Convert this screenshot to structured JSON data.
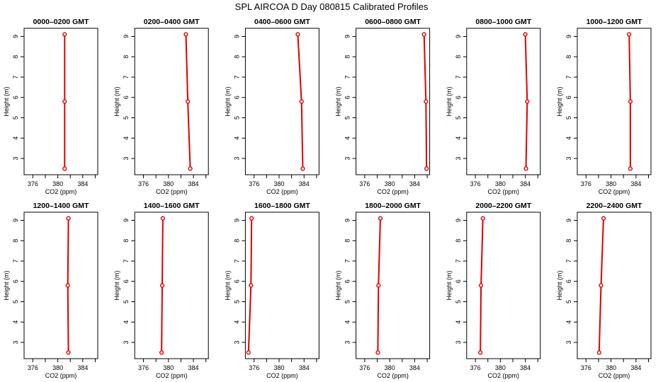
{
  "title": "SPL AIRCOA D  Day 080815  Calibrated Profiles",
  "colors": {
    "profile": "#dd0000",
    "frame": "#000000",
    "background": "#ffffff"
  },
  "chart_data": [
    {
      "type": "line",
      "title": "0000–0200 GMT",
      "xlabel": "CO2 (ppm)",
      "ylabel": "Height (m)",
      "xlim": [
        374.6,
        386.4
      ],
      "ylim": [
        2.2,
        9.4
      ],
      "x_ticks": [
        376,
        380,
        384
      ],
      "y_ticks": [
        3,
        4,
        5,
        6,
        7,
        8,
        9
      ],
      "grid": false,
      "series": [
        {
          "x": [
            381.1,
            381.1,
            381.1
          ],
          "y": [
            9.1,
            5.8,
            2.5
          ]
        }
      ]
    },
    {
      "type": "line",
      "title": "0200–0400 GMT",
      "xlabel": "CO2 (ppm)",
      "ylabel": "Height (m)",
      "xlim": [
        374.6,
        386.4
      ],
      "ylim": [
        2.2,
        9.4
      ],
      "x_ticks": [
        376,
        380,
        384
      ],
      "y_ticks": [
        3,
        4,
        5,
        6,
        7,
        8,
        9
      ],
      "grid": false,
      "series": [
        {
          "x": [
            382.8,
            383.1,
            383.5
          ],
          "y": [
            9.1,
            5.8,
            2.5
          ]
        }
      ]
    },
    {
      "type": "line",
      "title": "0400–0600 GMT",
      "xlabel": "CO2 (ppm)",
      "ylabel": "Height (m)",
      "xlim": [
        374.6,
        386.4
      ],
      "ylim": [
        2.2,
        9.4
      ],
      "x_ticks": [
        376,
        380,
        384
      ],
      "y_ticks": [
        3,
        4,
        5,
        6,
        7,
        8,
        9
      ],
      "grid": false,
      "series": [
        {
          "x": [
            383.0,
            383.6,
            383.8
          ],
          "y": [
            9.1,
            5.8,
            2.5
          ]
        }
      ]
    },
    {
      "type": "line",
      "title": "0600–0800 GMT",
      "xlabel": "CO2 (ppm)",
      "ylabel": "Height (m)",
      "xlim": [
        374.6,
        386.4
      ],
      "ylim": [
        2.2,
        9.4
      ],
      "x_ticks": [
        376,
        380,
        384
      ],
      "y_ticks": [
        3,
        4,
        5,
        6,
        7,
        8,
        9
      ],
      "grid": false,
      "series": [
        {
          "x": [
            385.5,
            385.8,
            385.9
          ],
          "y": [
            9.1,
            5.8,
            2.5
          ]
        }
      ]
    },
    {
      "type": "line",
      "title": "0800–1000 GMT",
      "xlabel": "CO2 (ppm)",
      "ylabel": "Height (m)",
      "xlim": [
        374.6,
        386.4
      ],
      "ylim": [
        2.2,
        9.4
      ],
      "x_ticks": [
        376,
        380,
        384
      ],
      "y_ticks": [
        3,
        4,
        5,
        6,
        7,
        8,
        9
      ],
      "grid": false,
      "series": [
        {
          "x": [
            384.0,
            384.3,
            384.1
          ],
          "y": [
            9.1,
            5.8,
            2.5
          ]
        }
      ]
    },
    {
      "type": "line",
      "title": "1000–1200 GMT",
      "xlabel": "CO2 (ppm)",
      "ylabel": "Height (m)",
      "xlim": [
        374.6,
        386.4
      ],
      "ylim": [
        2.2,
        9.4
      ],
      "x_ticks": [
        376,
        380,
        384
      ],
      "y_ticks": [
        3,
        4,
        5,
        6,
        7,
        8,
        9
      ],
      "grid": false,
      "series": [
        {
          "x": [
            382.9,
            383.1,
            383.1
          ],
          "y": [
            9.1,
            5.8,
            2.5
          ]
        }
      ]
    },
    {
      "type": "line",
      "title": "1200–1400 GMT",
      "xlabel": "CO2 (ppm)",
      "ylabel": "Height (m)",
      "xlim": [
        374.6,
        386.4
      ],
      "ylim": [
        2.2,
        9.4
      ],
      "x_ticks": [
        376,
        380,
        384
      ],
      "y_ticks": [
        3,
        4,
        5,
        6,
        7,
        8,
        9
      ],
      "grid": false,
      "series": [
        {
          "x": [
            381.7,
            381.6,
            381.7
          ],
          "y": [
            9.1,
            5.8,
            2.5
          ]
        }
      ]
    },
    {
      "type": "line",
      "title": "1400–1600 GMT",
      "xlabel": "CO2 (ppm)",
      "ylabel": "Height (m)",
      "xlim": [
        374.6,
        386.4
      ],
      "ylim": [
        2.2,
        9.4
      ],
      "x_ticks": [
        376,
        380,
        384
      ],
      "y_ticks": [
        3,
        4,
        5,
        6,
        7,
        8,
        9
      ],
      "grid": false,
      "series": [
        {
          "x": [
            379.1,
            379.0,
            378.9
          ],
          "y": [
            9.1,
            5.8,
            2.5
          ]
        }
      ]
    },
    {
      "type": "line",
      "title": "1600–1800 GMT",
      "xlabel": "CO2 (ppm)",
      "ylabel": "Height (m)",
      "xlim": [
        374.6,
        386.4
      ],
      "ylim": [
        2.2,
        9.4
      ],
      "x_ticks": [
        376,
        380,
        384
      ],
      "y_ticks": [
        3,
        4,
        5,
        6,
        7,
        8,
        9
      ],
      "grid": false,
      "series": [
        {
          "x": [
            375.6,
            375.5,
            375.1
          ],
          "y": [
            9.1,
            5.8,
            2.5
          ]
        }
      ]
    },
    {
      "type": "line",
      "title": "1800–2000 GMT",
      "xlabel": "CO2 (ppm)",
      "ylabel": "Height (m)",
      "xlim": [
        374.6,
        386.4
      ],
      "ylim": [
        2.2,
        9.4
      ],
      "x_ticks": [
        376,
        380,
        384
      ],
      "y_ticks": [
        3,
        4,
        5,
        6,
        7,
        8,
        9
      ],
      "grid": false,
      "series": [
        {
          "x": [
            378.5,
            378.2,
            378.1
          ],
          "y": [
            9.1,
            5.8,
            2.5
          ]
        }
      ]
    },
    {
      "type": "line",
      "title": "2000–2200 GMT",
      "xlabel": "CO2 (ppm)",
      "ylabel": "Height (m)",
      "xlim": [
        374.6,
        386.4
      ],
      "ylim": [
        2.2,
        9.4
      ],
      "x_ticks": [
        376,
        380,
        384
      ],
      "y_ticks": [
        3,
        4,
        5,
        6,
        7,
        8,
        9
      ],
      "grid": false,
      "series": [
        {
          "x": [
            377.2,
            376.9,
            376.8
          ],
          "y": [
            9.1,
            5.8,
            2.5
          ]
        }
      ]
    },
    {
      "type": "line",
      "title": "2200–2400 GMT",
      "xlabel": "CO2 (ppm)",
      "ylabel": "Height (m)",
      "xlim": [
        374.6,
        386.4
      ],
      "ylim": [
        2.2,
        9.4
      ],
      "x_ticks": [
        376,
        380,
        384
      ],
      "y_ticks": [
        3,
        4,
        5,
        6,
        7,
        8,
        9
      ],
      "grid": false,
      "series": [
        {
          "x": [
            378.8,
            378.4,
            378.1
          ],
          "y": [
            9.1,
            5.8,
            2.5
          ]
        }
      ]
    }
  ]
}
